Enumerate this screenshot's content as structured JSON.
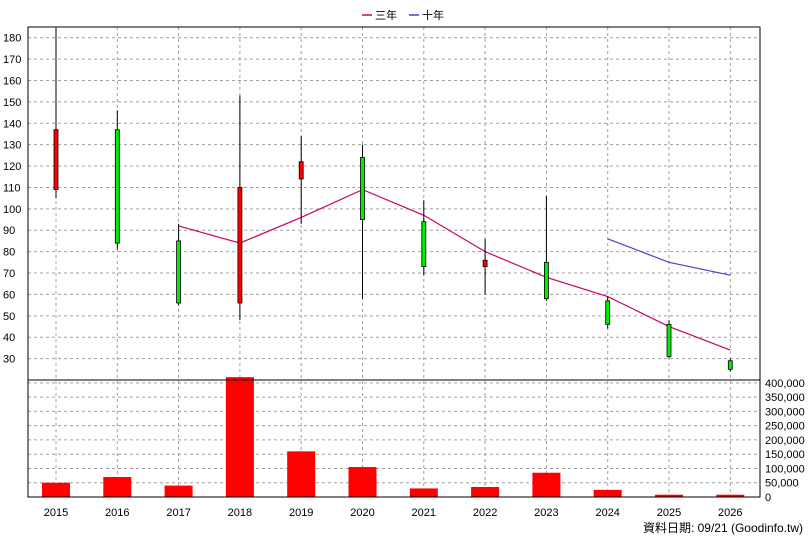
{
  "legend": {
    "items": [
      {
        "label": "三年",
        "color": "#cc0066"
      },
      {
        "label": "十年",
        "color": "#6633cc"
      }
    ]
  },
  "footer": {
    "source": "資料日期: 09/21  (Goodinfo.tw)"
  },
  "chart_data": {
    "type": "candlestick+bar",
    "categories": [
      "2015",
      "2016",
      "2017",
      "2018",
      "2019",
      "2020",
      "2021",
      "2022",
      "2023",
      "2024",
      "2025",
      "2026"
    ],
    "candles": [
      {
        "open": 109,
        "close": 137,
        "high": 185,
        "low": 105
      },
      {
        "open": 137,
        "close": 84,
        "high": 146,
        "low": 81
      },
      {
        "open": 85,
        "close": 56,
        "high": 93,
        "low": 55
      },
      {
        "open": 56,
        "close": 110,
        "high": 153,
        "low": 48
      },
      {
        "open": 114,
        "close": 122,
        "high": 134,
        "low": 93
      },
      {
        "open": 124,
        "close": 95,
        "high": 130,
        "low": 58
      },
      {
        "open": 94,
        "close": 73,
        "high": 104,
        "low": 69
      },
      {
        "open": 73,
        "close": 76,
        "high": 86,
        "low": 60
      },
      {
        "open": 75,
        "close": 58,
        "high": 106,
        "low": 57
      },
      {
        "open": 57,
        "close": 46,
        "high": 59,
        "low": 44
      },
      {
        "open": 46,
        "close": 31,
        "high": 48,
        "low": 30
      },
      {
        "open": 29,
        "close": 25,
        "high": 30,
        "low": 24
      }
    ],
    "line_series": [
      {
        "name": "三年",
        "color": "#cc0066",
        "values": [
          null,
          null,
          92,
          84,
          96,
          109,
          97,
          80,
          68,
          59,
          45,
          34
        ]
      },
      {
        "name": "十年",
        "color": "#6633cc",
        "values": [
          null,
          null,
          null,
          null,
          null,
          null,
          null,
          null,
          null,
          86,
          75,
          69
        ]
      }
    ],
    "volume": [
      50000,
      70000,
      40000,
      420000,
      160000,
      105000,
      30000,
      35000,
      85000,
      25000,
      8000,
      8000
    ],
    "y_price": {
      "min": 20,
      "max": 185,
      "ticks": [
        30,
        40,
        50,
        60,
        70,
        80,
        90,
        100,
        110,
        120,
        130,
        140,
        150,
        160,
        170,
        180
      ]
    },
    "y_volume": {
      "min": 0,
      "max": 410000,
      "ticks": [
        0,
        50000,
        100000,
        150000,
        200000,
        250000,
        300000,
        350000,
        400000
      ],
      "tick_labels": [
        "0",
        "50,000",
        "100,000",
        "150,000",
        "200,000",
        "250,000",
        "300,000",
        "350,000",
        "400,000"
      ]
    },
    "colors": {
      "up": "#ff0000",
      "down": "#00ee00",
      "volume": "#ff0000",
      "wick": "#000000"
    },
    "grid": true,
    "legend_position": "top-center"
  }
}
